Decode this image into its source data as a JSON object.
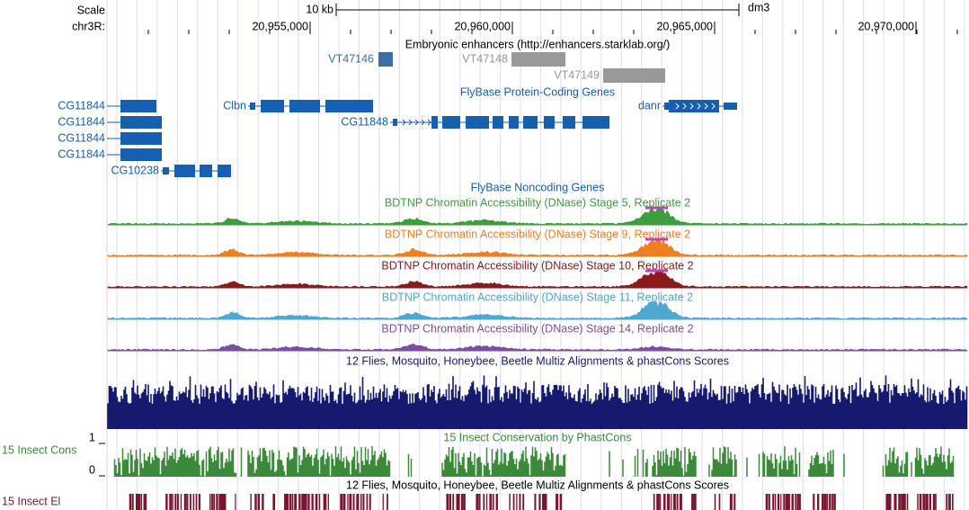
{
  "header": {
    "scale_label": "Scale",
    "scale_bar": "10 kb",
    "assembly": "dm3",
    "chrom": "chr3R:",
    "positions": [
      "20,955,000",
      "20,960,000",
      "20,965,000",
      "20,970,000"
    ]
  },
  "tracks": {
    "enhancers": {
      "title": "Embryonic enhancers (http://enhancers.starklab.org/)",
      "items": [
        "VT47146",
        "VT47148",
        "VT47149"
      ]
    },
    "genes": {
      "title": "FlyBase Protein-Coding Genes",
      "items": [
        "CG11844",
        "CG11844",
        "CG11844",
        "CG11844",
        "Clbn",
        "CG11848",
        "danr",
        "CG10238"
      ]
    },
    "noncoding": {
      "title": "FlyBase Noncoding Genes"
    },
    "dnase": [
      "BDTNP Chromatin Accessibility (DNase) Stage 5, Replicate 2",
      "BDTNP Chromatin Accessibility (DNase) Stage 9, Replicate 2",
      "BDTNP Chromatin Accessibility (DNase) Stage 10, Replicate 2",
      "BDTNP Chromatin Accessibility (DNase) Stage 11, Replicate 2",
      "BDTNP Chromatin Accessibility (DNase) Stage 14, Replicate 2"
    ],
    "multiz": {
      "title": "12 Flies, Mosquito, Honeybee, Beetle Multiz Alignments & phastCons Scores"
    },
    "cons": {
      "side_label": "15 Insect Cons",
      "title": "15 Insect Conservation by PhastCons",
      "max": 1,
      "min": 0
    },
    "multiz2": {
      "title": "12 Flies, Mosquito, Honeybee, Beetle Multiz Alignments & phastCons Scores"
    },
    "elements": {
      "side_label": "15 Insect El"
    }
  }
}
